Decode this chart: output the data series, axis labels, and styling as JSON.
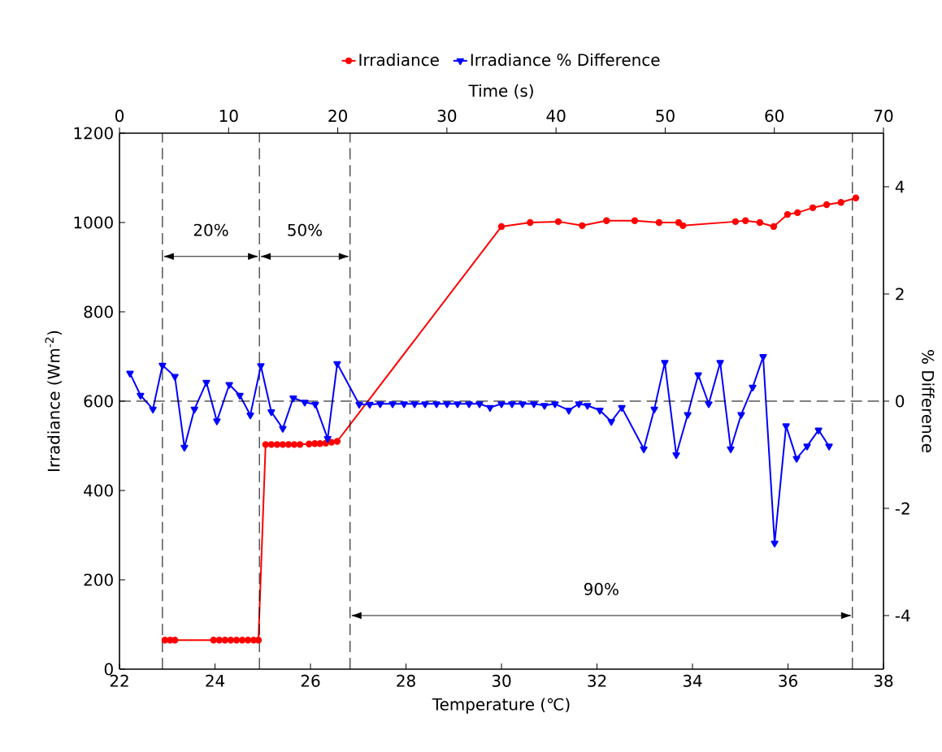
{
  "chart_data": {
    "type": "line",
    "xlabel": "Temperature (℃)",
    "ylabel": "Irradiance (Wm$^{-2}$)",
    "y2label": "% Difference",
    "x2label": "Time (s)",
    "xlim": [
      22,
      38
    ],
    "xticks": [
      22,
      24,
      26,
      28,
      30,
      32,
      34,
      36,
      38
    ],
    "x2lim": [
      0,
      70
    ],
    "x2ticks": [
      0,
      10,
      20,
      30,
      40,
      50,
      60,
      70
    ],
    "ylim": [
      0,
      1200
    ],
    "yticks": [
      0,
      200,
      400,
      600,
      800,
      1000,
      1200
    ],
    "y2lim": [
      -5,
      5
    ],
    "y2ticks": [
      -4,
      -2,
      0,
      2,
      4
    ],
    "legend": "top",
    "grid": false,
    "series": [
      {
        "name": "Irradiance",
        "color": "#ff0000",
        "marker": "circle",
        "axis": "y",
        "x": [
          22.95,
          23.06,
          23.16,
          23.97,
          24.09,
          24.21,
          24.33,
          24.45,
          24.57,
          24.69,
          24.81,
          24.91,
          25.06,
          25.18,
          25.3,
          25.42,
          25.54,
          25.66,
          25.78,
          25.97,
          26.09,
          26.2,
          26.32,
          26.44,
          26.56,
          30.0,
          30.6,
          31.19,
          31.69,
          32.2,
          32.79,
          33.3,
          33.71,
          33.8,
          34.9,
          35.11,
          35.41,
          35.7,
          35.99,
          36.2,
          36.52,
          36.81,
          37.11,
          37.42
        ],
        "values": [
          65,
          65,
          65,
          65,
          65,
          65,
          65,
          65,
          65,
          65,
          65,
          65,
          503,
          503,
          503,
          503,
          503,
          503,
          503,
          504,
          505,
          505,
          506,
          508,
          510,
          991,
          1000,
          1002,
          993,
          1004,
          1004,
          1000,
          1000,
          993,
          1002,
          1004,
          1000,
          991,
          1018,
          1022,
          1033,
          1040,
          1045,
          1055
        ]
      },
      {
        "name": "Irradiance % Difference",
        "color": "#0000ff",
        "marker": "triangle",
        "axis": "y2",
        "x": [
          22.22,
          22.44,
          22.7,
          22.9,
          23.16,
          23.36,
          23.57,
          23.82,
          24.04,
          24.3,
          24.52,
          24.74,
          24.96,
          25.18,
          25.42,
          25.64,
          25.88,
          26.1,
          26.36,
          26.56,
          27.02,
          27.24,
          27.46,
          27.72,
          27.96,
          28.18,
          28.4,
          28.64,
          28.86,
          29.08,
          29.32,
          29.54,
          29.76,
          30.0,
          30.22,
          30.44,
          30.68,
          30.9,
          31.12,
          31.41,
          31.62,
          31.8,
          32.06,
          32.3,
          32.52,
          32.98,
          33.2,
          33.42,
          33.66,
          33.9,
          34.12,
          34.34,
          34.58,
          34.8,
          35.02,
          35.26,
          35.48,
          35.72,
          35.96,
          36.18,
          36.4,
          36.64,
          36.86
        ],
        "values": [
          0.52,
          0.11,
          -0.15,
          0.67,
          0.46,
          -0.86,
          -0.15,
          0.35,
          -0.37,
          0.31,
          0.11,
          -0.26,
          0.66,
          -0.2,
          -0.51,
          0.06,
          -0.02,
          -0.06,
          -0.7,
          0.7,
          -0.06,
          -0.06,
          -0.05,
          -0.05,
          -0.05,
          -0.05,
          -0.05,
          -0.05,
          -0.05,
          -0.05,
          -0.05,
          -0.05,
          -0.12,
          -0.05,
          -0.05,
          -0.05,
          -0.05,
          -0.08,
          -0.05,
          -0.17,
          -0.05,
          -0.08,
          -0.17,
          -0.38,
          -0.12,
          -0.89,
          -0.15,
          0.72,
          -1.0,
          -0.25,
          0.49,
          -0.05,
          0.72,
          -0.89,
          -0.25,
          0.26,
          0.83,
          -2.65,
          -0.46,
          -1.07,
          -0.84,
          -0.54,
          -0.84
        ]
      }
    ],
    "ref_lines": [
      {
        "axis": "x",
        "value": 22.9,
        "color": "#000000",
        "line_style": "dashed"
      },
      {
        "axis": "x",
        "value": 24.93,
        "color": "#000000",
        "line_style": "dashed"
      },
      {
        "axis": "x",
        "value": 26.83,
        "color": "#000000",
        "line_style": "dashed"
      },
      {
        "axis": "x",
        "value": 37.35,
        "color": "#000000",
        "line_style": "dashed"
      },
      {
        "axis": "y2",
        "value": 0,
        "color": "#000000",
        "line_style": "dashed"
      }
    ],
    "annotations": [
      "20%",
      "50%",
      "90%"
    ]
  }
}
